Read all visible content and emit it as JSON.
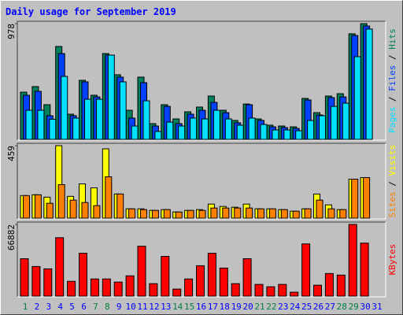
{
  "title": "Daily usage for September 2019",
  "legend_separator": " / ",
  "chart_data": [
    {
      "type": "bar",
      "ylim": [
        0,
        978
      ],
      "yticks": [
        978
      ],
      "series": [
        {
          "name": "Hits",
          "color": "#00805c",
          "values": [
            399,
            446,
            293,
            785,
            213,
            499,
            373,
            725,
            546,
            246,
            526,
            133,
            293,
            173,
            233,
            273,
            366,
            246,
            160,
            299,
            173,
            120,
            113,
            106,
            346,
            226,
            366,
            386,
            892,
            978,
            0
          ]
        },
        {
          "name": "Files",
          "color": "#0040ff",
          "values": [
            373,
            406,
            200,
            725,
            200,
            486,
            359,
            712,
            526,
            180,
            479,
            113,
            279,
            133,
            213,
            246,
            313,
            226,
            140,
            293,
            160,
            106,
            100,
            93,
            333,
            206,
            353,
            359,
            878,
            958,
            0
          ]
        },
        {
          "name": "Pages",
          "color": "#00e0ff",
          "values": [
            246,
            246,
            170,
            532,
            180,
            339,
            339,
            712,
            486,
            113,
            326,
            67,
            146,
            113,
            180,
            173,
            246,
            173,
            120,
            180,
            126,
            80,
            80,
            73,
            160,
            200,
            279,
            306,
            699,
            932,
            0
          ]
        }
      ]
    },
    {
      "type": "bar",
      "ylim": [
        0,
        459
      ],
      "yticks": [
        459
      ],
      "series": [
        {
          "name": "Visits",
          "color": "#ffff00",
          "values": [
            143,
            148,
            133,
            459,
            138,
            217,
            192,
            439,
            153,
            59,
            59,
            49,
            54,
            39,
            49,
            54,
            89,
            74,
            69,
            89,
            59,
            59,
            54,
            44,
            59,
            153,
            84,
            54,
            247,
            257,
            0
          ]
        },
        {
          "name": "Sites",
          "color": "#ff8000",
          "values": [
            143,
            148,
            94,
            212,
            114,
            99,
            79,
            262,
            153,
            59,
            54,
            49,
            54,
            39,
            49,
            49,
            64,
            64,
            64,
            64,
            59,
            59,
            54,
            44,
            59,
            114,
            59,
            54,
            247,
            257,
            0
          ]
        }
      ]
    },
    {
      "type": "bar",
      "ylim": [
        0,
        66882
      ],
      "yticks": [
        66882
      ],
      "categories": [
        "1",
        "2",
        "3",
        "4",
        "5",
        "6",
        "7",
        "8",
        "9",
        "10",
        "11",
        "12",
        "13",
        "14",
        "15",
        "16",
        "17",
        "18",
        "19",
        "20",
        "21",
        "22",
        "23",
        "24",
        "25",
        "26",
        "27",
        "28",
        "29",
        "30",
        "31"
      ],
      "label_colors": [
        "#008040",
        "#0000ff",
        "#0000ff",
        "#0000ff",
        "#0000ff",
        "#0000ff",
        "#008040",
        "#008040",
        "#0000ff",
        "#0000ff",
        "#0000ff",
        "#0000ff",
        "#0000ff",
        "#008040",
        "#008040",
        "#0000ff",
        "#0000ff",
        "#0000ff",
        "#0000ff",
        "#0000ff",
        "#008040",
        "#008040",
        "#0000ff",
        "#0000ff",
        "#0000ff",
        "#0000ff",
        "#0000ff",
        "#008040",
        "#008040",
        "#0000ff",
        "#0000ff"
      ],
      "series": [
        {
          "name": "KBytes",
          "color": "#ff0000",
          "values": [
            34895,
            27625,
            25444,
            54523,
            13813,
            39984,
            15994,
            15994,
            13086,
            18902,
            46527,
            11632,
            37076,
            6543,
            15994,
            28352,
            39984,
            26171,
            11632,
            34895,
            10905,
            8724,
            10905,
            3635,
            48708,
            10178,
            21083,
            19629,
            66882,
            49435,
            0
          ]
        }
      ]
    }
  ]
}
